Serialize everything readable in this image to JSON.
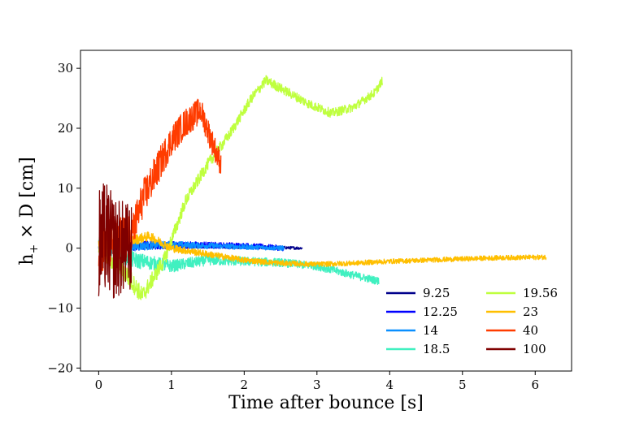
{
  "chart_data": {
    "type": "line",
    "title": "",
    "xlabel": "Time after bounce [s]",
    "ylabel_main": "h",
    "ylabel_sub": "+",
    "ylabel_rest": " × D [cm]",
    "xlim": [
      -0.25,
      6.5
    ],
    "ylim": [
      -20.5,
      33
    ],
    "xticks": [
      0,
      1,
      2,
      3,
      4,
      5,
      6
    ],
    "xtick_labels": [
      "0",
      "1",
      "2",
      "3",
      "4",
      "5",
      "6"
    ],
    "yticks": [
      -20,
      -10,
      0,
      10,
      20,
      30
    ],
    "ytick_labels": [
      "−20",
      "−10",
      "0",
      "10",
      "20",
      "30"
    ],
    "grid": false,
    "legend_position": "lower-right",
    "series": [
      {
        "name": "9.25",
        "color": "#00008b",
        "end_time": 2.8,
        "noise": 0.5,
        "trend": [
          [
            0,
            0
          ],
          [
            0.5,
            0.3
          ],
          [
            1.0,
            0.3
          ],
          [
            1.5,
            0.3
          ],
          [
            2.0,
            0.2
          ],
          [
            2.5,
            0.1
          ],
          [
            2.8,
            0
          ]
        ]
      },
      {
        "name": "12.25",
        "color": "#0000ff",
        "end_time": 2.55,
        "noise": 0.9,
        "trend": [
          [
            0,
            0
          ],
          [
            0.5,
            0.5
          ],
          [
            1.0,
            0.5
          ],
          [
            1.5,
            0.5
          ],
          [
            2.0,
            0.4
          ],
          [
            2.55,
            0
          ]
        ]
      },
      {
        "name": "14",
        "color": "#0a8fff",
        "end_time": 2.55,
        "noise": 0.8,
        "trend": [
          [
            0,
            0
          ],
          [
            0.5,
            0.3
          ],
          [
            1.0,
            0.6
          ],
          [
            1.5,
            0.4
          ],
          [
            2.0,
            0.2
          ],
          [
            2.55,
            0
          ]
        ]
      },
      {
        "name": "18.5",
        "color": "#40f0c0",
        "end_time": 3.85,
        "noise": 1.4,
        "trend": [
          [
            0,
            0
          ],
          [
            0.5,
            -2
          ],
          [
            1.0,
            -3
          ],
          [
            1.5,
            -2
          ],
          [
            2.0,
            -2.2
          ],
          [
            2.5,
            -2.4
          ],
          [
            3.0,
            -3
          ],
          [
            3.5,
            -4.5
          ],
          [
            3.85,
            -5.5
          ]
        ]
      },
      {
        "name": "19.56",
        "color": "#bfff3f",
        "end_time": 3.9,
        "noise": 1.6,
        "trend": [
          [
            0,
            0
          ],
          [
            0.3,
            -3
          ],
          [
            0.6,
            -8
          ],
          [
            0.9,
            -2
          ],
          [
            1.2,
            8
          ],
          [
            1.5,
            14
          ],
          [
            1.8,
            19
          ],
          [
            2.1,
            25
          ],
          [
            2.3,
            28
          ],
          [
            2.6,
            26
          ],
          [
            2.9,
            24
          ],
          [
            3.2,
            22.5
          ],
          [
            3.5,
            23.5
          ],
          [
            3.8,
            26
          ],
          [
            3.9,
            28
          ]
        ]
      },
      {
        "name": "23",
        "color": "#ffbf00",
        "end_time": 6.15,
        "noise": 0.9,
        "trend": [
          [
            0,
            0
          ],
          [
            0.7,
            2
          ],
          [
            1.0,
            0
          ],
          [
            1.5,
            -1
          ],
          [
            2.0,
            -2
          ],
          [
            2.5,
            -2.5
          ],
          [
            3.0,
            -2.7
          ],
          [
            3.5,
            -2.5
          ],
          [
            4.0,
            -2.2
          ],
          [
            4.5,
            -2
          ],
          [
            5.0,
            -1.8
          ],
          [
            5.5,
            -1.6
          ],
          [
            6.15,
            -1.5
          ]
        ]
      },
      {
        "name": "40",
        "color": "#ff3c00",
        "end_time": 1.68,
        "noise": 3.5,
        "trend": [
          [
            0,
            0
          ],
          [
            0.45,
            2
          ],
          [
            0.6,
            8
          ],
          [
            0.8,
            13
          ],
          [
            1.0,
            18
          ],
          [
            1.2,
            21
          ],
          [
            1.4,
            23
          ],
          [
            1.55,
            18
          ],
          [
            1.68,
            14
          ]
        ]
      },
      {
        "name": "100",
        "color": "#7f0000",
        "end_time": 0.45,
        "noise": 7.5,
        "trend": [
          [
            0,
            0
          ],
          [
            0.1,
            2
          ],
          [
            0.2,
            0
          ],
          [
            0.3,
            0
          ],
          [
            0.45,
            0
          ]
        ]
      }
    ]
  }
}
